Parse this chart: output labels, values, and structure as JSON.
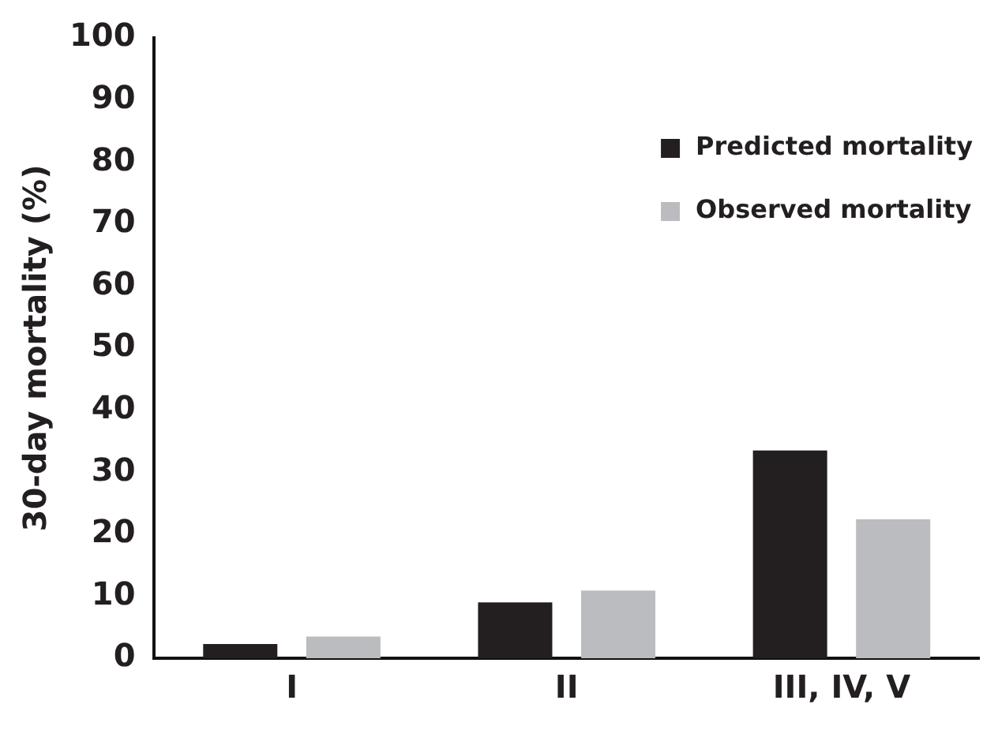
{
  "chart_data": {
    "type": "bar",
    "ylabel": "30-day mortality (%)",
    "categories": [
      "I",
      "II",
      "III, IV, V"
    ],
    "series": [
      {
        "name": "Predicted mortality",
        "color": "#231f20",
        "values": [
          2.3,
          9.0,
          33.5
        ]
      },
      {
        "name": "Observed mortality",
        "color": "#bbbcbf",
        "values": [
          3.5,
          10.9,
          22.4
        ]
      }
    ],
    "ylim": [
      0,
      100
    ],
    "yticks": [
      0,
      10,
      20,
      30,
      40,
      50,
      60,
      70,
      80,
      90,
      100
    ],
    "grid": false,
    "legend": "top right"
  }
}
